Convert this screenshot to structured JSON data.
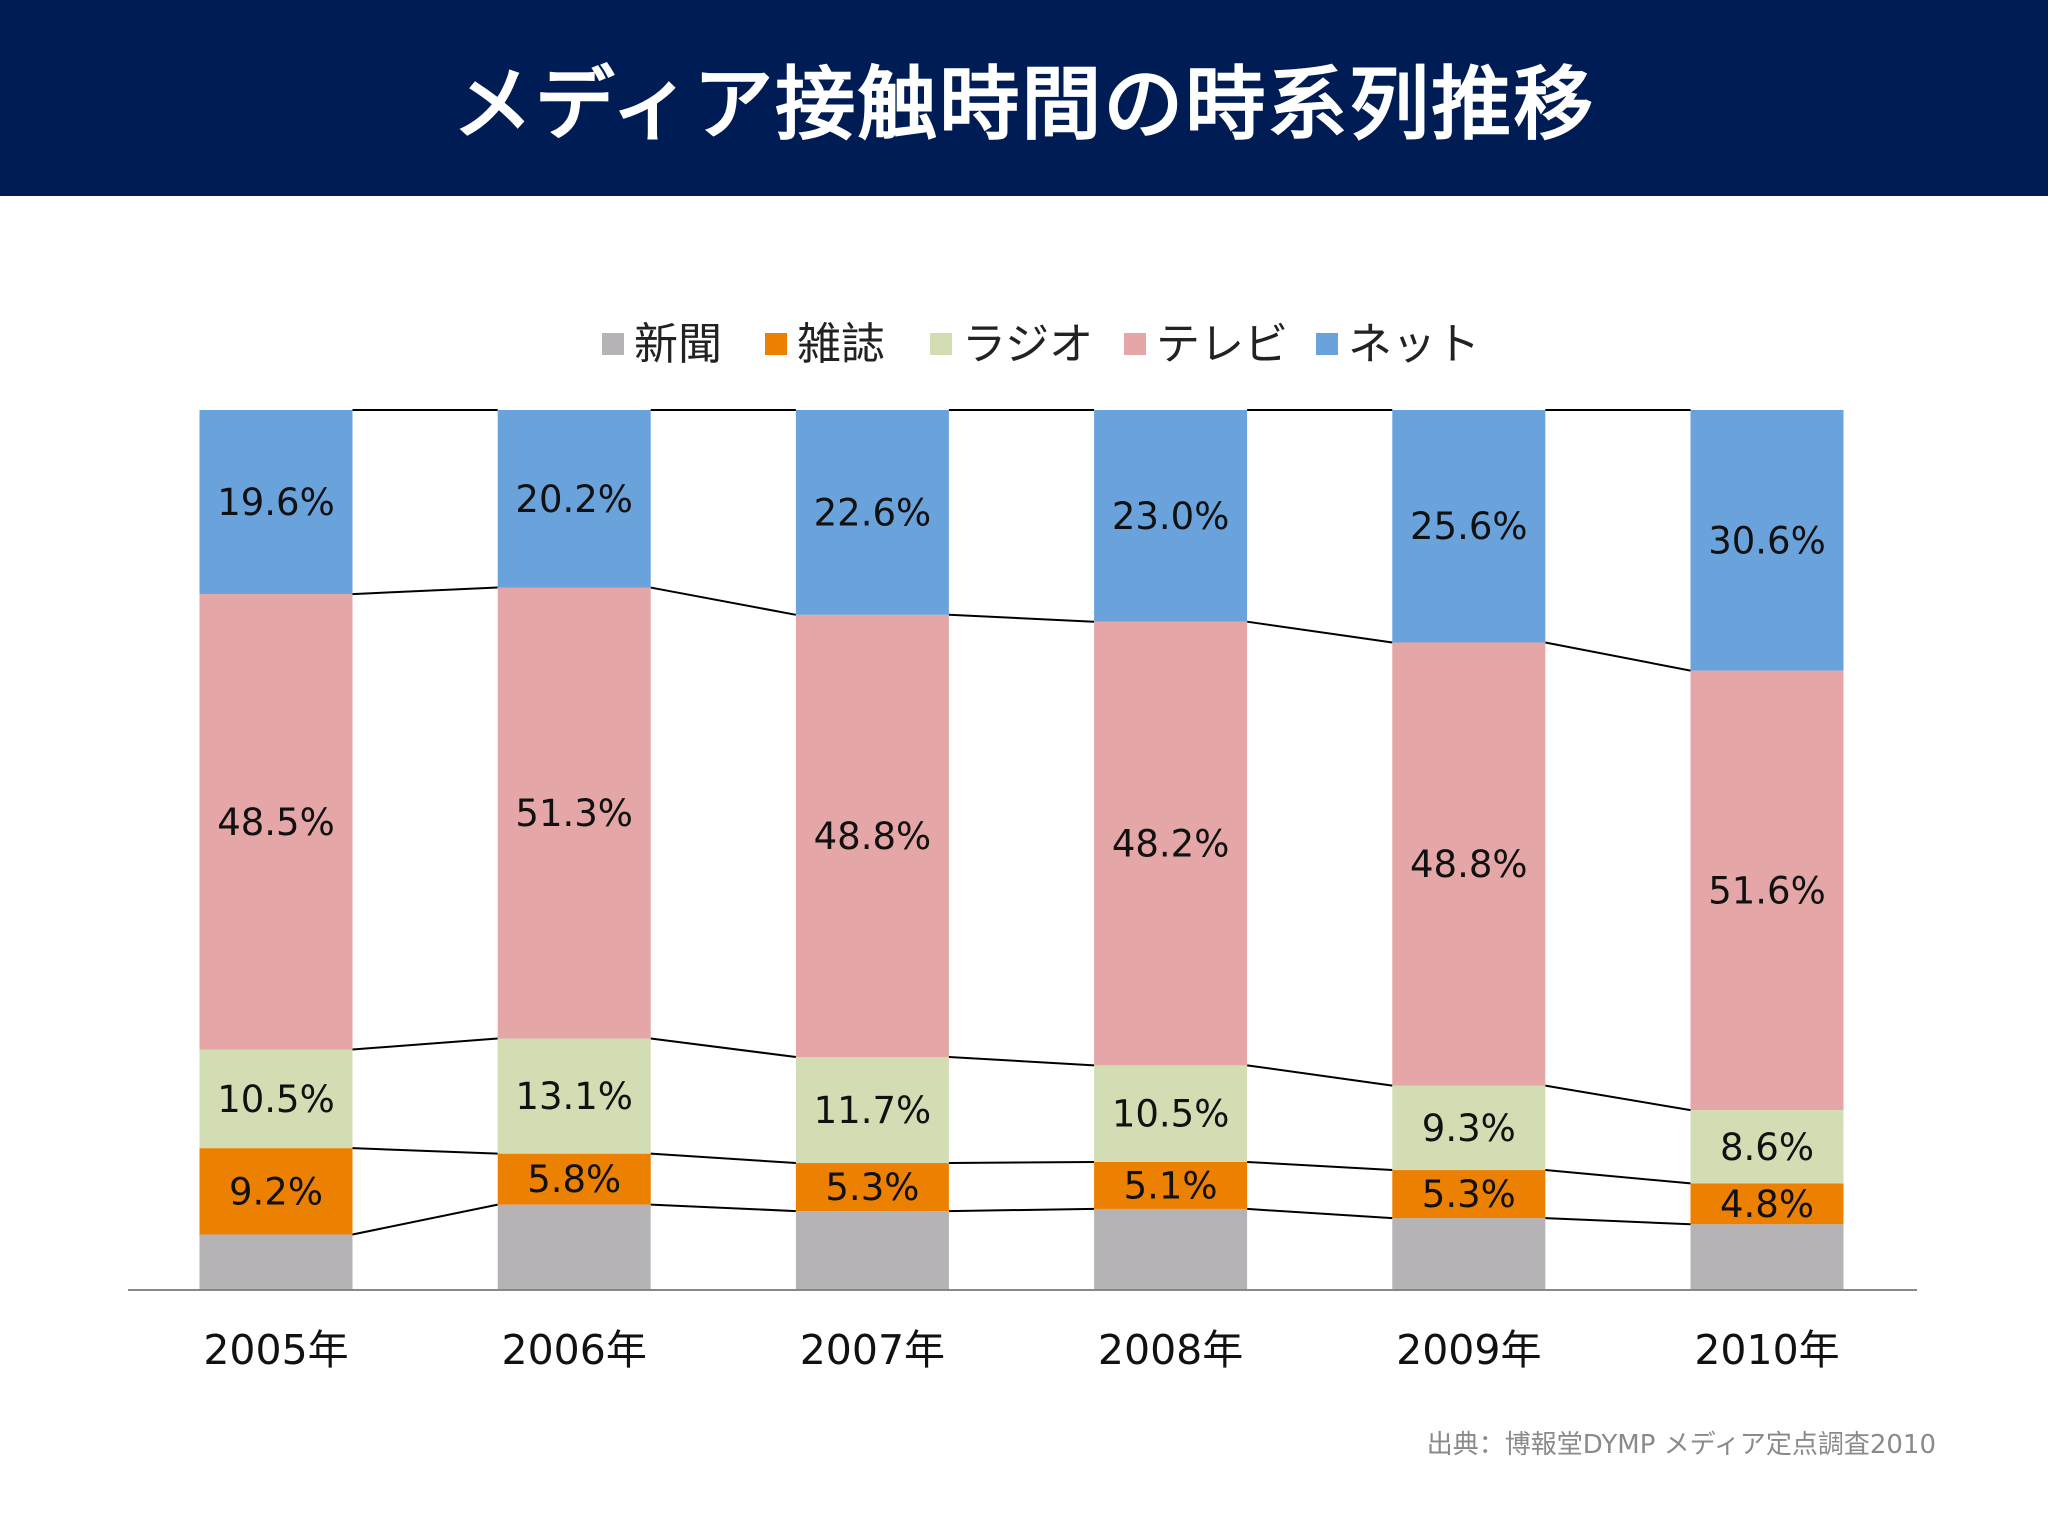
{
  "page": {
    "title": "メディア接触時間の時系列推移",
    "source": "出典：博報堂DYMP メディア定点調査2010"
  },
  "colors": {
    "header_bg": "#001c55",
    "新聞": "#b5b3b6",
    "雑誌": "#ec8000",
    "ラジオ": "#d2ddb3",
    "テレビ": "#e4a6a6",
    "ネット": "#6aa2db",
    "axis": "#888888",
    "connector": "#000000"
  },
  "chart_data": {
    "type": "bar",
    "stacked": true,
    "normalized": true,
    "title": "",
    "xlabel": "",
    "ylabel": "",
    "ylim": [
      0,
      100
    ],
    "grid": false,
    "legend_position": "top",
    "categories": [
      "2005年",
      "2006年",
      "2007年",
      "2008年",
      "2009年",
      "2010年"
    ],
    "series": [
      {
        "name": "新聞",
        "values": [
          5.8,
          9.6,
          8.6,
          8.7,
          7.8,
          7.6
        ],
        "labels": [
          "",
          "",
          "",
          "",
          "",
          ""
        ]
      },
      {
        "name": "雑誌",
        "values": [
          9.2,
          5.8,
          5.3,
          5.1,
          5.3,
          4.8
        ],
        "labels": [
          "9.2%",
          "5.8%",
          "5.3%",
          "5.1%",
          "5.3%",
          "4.8%"
        ]
      },
      {
        "name": "ラジオ",
        "values": [
          10.5,
          13.1,
          11.7,
          10.5,
          9.3,
          8.6
        ],
        "labels": [
          "10.5%",
          "13.1%",
          "11.7%",
          "10.5%",
          "9.3%",
          "8.6%"
        ]
      },
      {
        "name": "テレビ",
        "values": [
          48.5,
          51.3,
          48.8,
          48.2,
          48.8,
          51.6
        ],
        "labels": [
          "48.5%",
          "51.3%",
          "48.8%",
          "48.2%",
          "48.8%",
          "51.6%"
        ]
      },
      {
        "name": "ネット",
        "values": [
          19.6,
          20.2,
          22.6,
          23.0,
          25.6,
          30.6
        ],
        "labels": [
          "19.6%",
          "20.2%",
          "22.6%",
          "23.0%",
          "25.6%",
          "30.6%"
        ]
      }
    ]
  }
}
